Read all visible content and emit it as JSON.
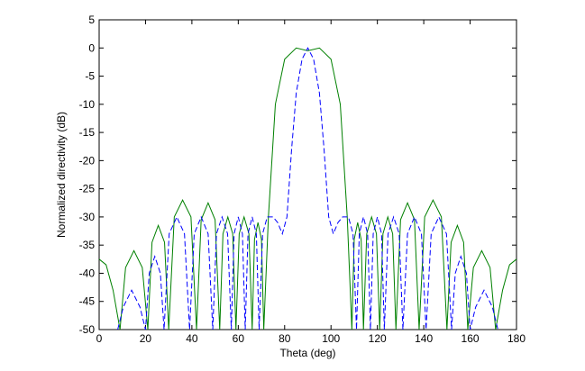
{
  "chart_data": {
    "type": "line",
    "xlabel": "Theta (deg)",
    "ylabel": "Normalized directivity (dB)",
    "xlim": [
      0,
      180
    ],
    "xticks": [
      0,
      20,
      40,
      60,
      80,
      100,
      120,
      140,
      160,
      180
    ],
    "ylim": [
      -50,
      5
    ],
    "yticks": [
      -50,
      -45,
      -40,
      -35,
      -30,
      -25,
      -20,
      -15,
      -10,
      -5,
      0,
      5
    ],
    "grid": false,
    "series": [
      {
        "color": "#008000",
        "dash": "solid",
        "x": [
          0,
          3,
          6,
          9,
          11.4,
          15,
          18.6,
          21,
          22.8,
          25.5,
          28.2,
          30,
          32.4,
          36,
          39.6,
          42,
          44,
          47,
          50,
          52,
          53.4,
          55.5,
          57.6,
          59,
          60.4,
          62.5,
          64.6,
          66,
          67,
          68.5,
          70,
          71,
          73,
          76,
          80,
          85,
          90,
          95,
          100,
          104,
          107,
          109,
          110,
          111.5,
          113,
          114,
          115.4,
          117.5,
          119.6,
          121,
          122.4,
          124.5,
          126.6,
          128,
          130,
          133,
          136,
          138,
          140.4,
          144,
          147.6,
          150,
          151.8,
          154.5,
          157.2,
          159,
          161.4,
          165,
          168.6,
          171,
          174,
          177,
          180
        ],
        "values": [
          -37.5,
          -38.5,
          -43,
          -50,
          -39,
          -36,
          -39,
          -50,
          -34.5,
          -31.5,
          -34.5,
          -50,
          -30,
          -27,
          -30,
          -50,
          -30.5,
          -27.5,
          -30.5,
          -50,
          -33,
          -30,
          -33,
          -50,
          -33,
          -30,
          -33,
          -50,
          -34,
          -31,
          -34,
          -50,
          -30,
          -10,
          -2,
          0,
          -0.5,
          0,
          -2,
          -10,
          -30,
          -50,
          -34,
          -31,
          -34,
          -50,
          -33,
          -30,
          -33,
          -50,
          -33,
          -30,
          -33,
          -50,
          -30.5,
          -27.5,
          -30.5,
          -50,
          -30,
          -27,
          -30,
          -50,
          -34.5,
          -31.5,
          -34.5,
          -50,
          -39,
          -36,
          -39,
          -50,
          -43,
          -38.5,
          -37.5
        ]
      },
      {
        "color": "#0000ff",
        "dash": "dashed",
        "x": [
          8,
          10.4,
          14,
          17.6,
          20,
          21.6,
          24,
          26.4,
          28,
          30.2,
          33.5,
          36.8,
          39,
          41,
          44,
          47,
          49,
          50.6,
          53,
          55.4,
          57,
          58.2,
          60,
          61.8,
          63,
          64.2,
          66,
          67.8,
          69,
          70.5,
          72.5,
          75,
          77,
          79,
          81,
          83,
          85,
          87.5,
          90,
          92.5,
          95,
          97,
          99,
          101,
          103,
          105,
          107.5,
          109.5,
          111,
          112.2,
          114,
          115.8,
          117,
          118.2,
          120,
          121.8,
          123,
          124.6,
          127,
          129.4,
          131,
          133,
          136,
          139,
          141,
          143.2,
          146.5,
          149.8,
          152,
          153.6,
          156,
          158.4,
          160,
          162.4,
          166,
          169.6,
          172
        ],
        "values": [
          -50,
          -46,
          -43,
          -46,
          -50,
          -40,
          -37,
          -40,
          -50,
          -33,
          -30,
          -33,
          -50,
          -33,
          -30,
          -33,
          -50,
          -33,
          -30,
          -33,
          -50,
          -33,
          -30,
          -33,
          -50,
          -33,
          -30,
          -33,
          -50,
          -33,
          -30,
          -30,
          -31,
          -33,
          -30,
          -18,
          -8,
          -2,
          0,
          -2,
          -8,
          -18,
          -30,
          -33,
          -31,
          -30,
          -30,
          -33,
          -50,
          -33,
          -30,
          -33,
          -50,
          -33,
          -30,
          -33,
          -50,
          -33,
          -30,
          -33,
          -50,
          -33,
          -30,
          -33,
          -50,
          -33,
          -30,
          -33,
          -50,
          -40,
          -37,
          -40,
          -50,
          -46,
          -43,
          -46,
          -50
        ]
      }
    ]
  }
}
